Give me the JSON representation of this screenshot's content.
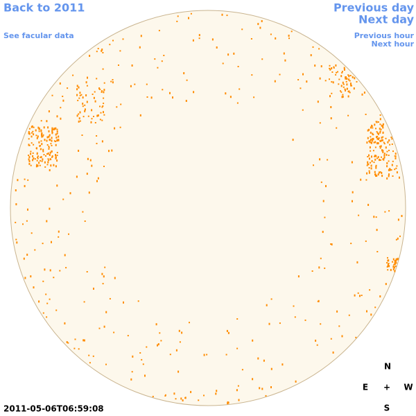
{
  "links": {
    "back_year": "Back to 2011",
    "facular_data": "See facular data",
    "previous_day": "Previous day",
    "next_day": "Next day",
    "previous_hour": "Previous hour",
    "next_hour": "Next hour"
  },
  "timestamp": "2011-05-06T06:59:08",
  "compass": {
    "north": "N",
    "east": "E",
    "center": "+",
    "west": "W",
    "south": "S"
  }
}
